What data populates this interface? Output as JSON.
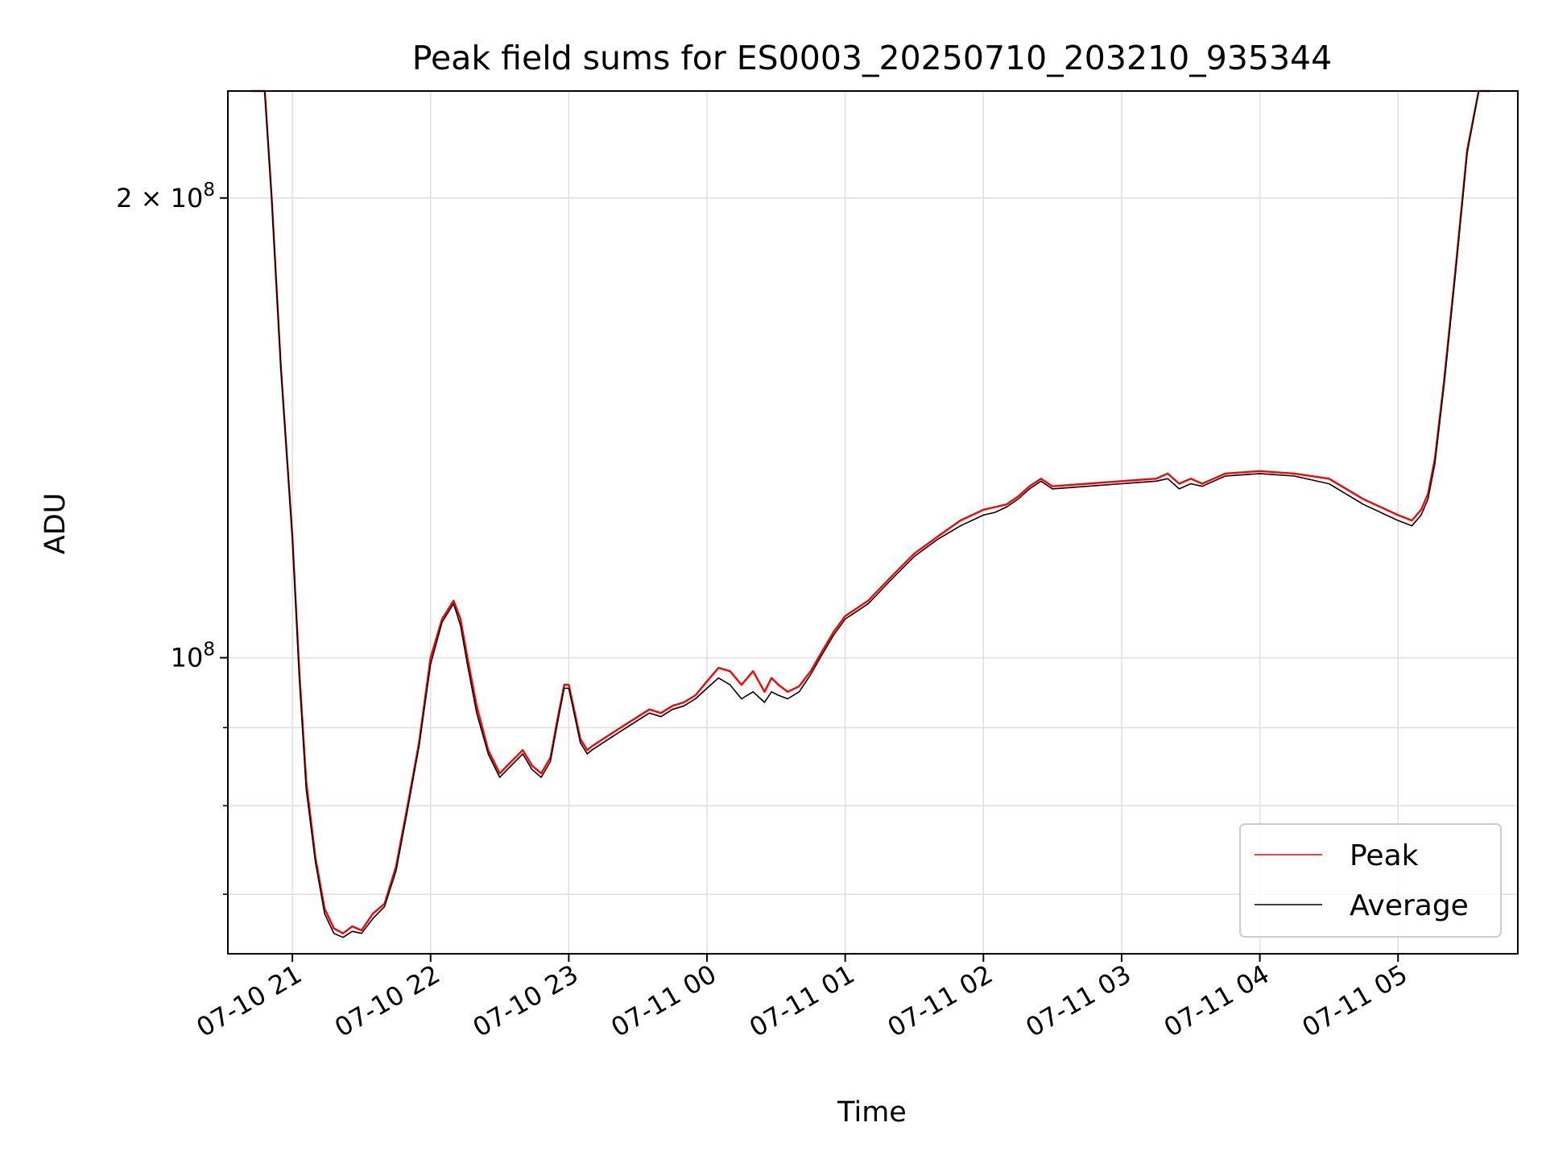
{
  "chart_data": {
    "type": "line",
    "title": "Peak field sums for ES0003_20250710_203210_935344",
    "xlabel": "Time",
    "ylabel": "ADU",
    "y_scale": "log",
    "ylim": [
      64000000,
      235000000
    ],
    "xlim": [
      "2025-07-10T20:32",
      "2025-07-11T05:52"
    ],
    "grid": true,
    "legend_position": "lower-right",
    "x_ticks": [
      {
        "t": "2025-07-10T21:00",
        "label": "07-10 21"
      },
      {
        "t": "2025-07-10T22:00",
        "label": "07-10 22"
      },
      {
        "t": "2025-07-10T23:00",
        "label": "07-10 23"
      },
      {
        "t": "2025-07-11T00:00",
        "label": "07-11 00"
      },
      {
        "t": "2025-07-11T01:00",
        "label": "07-11 01"
      },
      {
        "t": "2025-07-11T02:00",
        "label": "07-11 02"
      },
      {
        "t": "2025-07-11T03:00",
        "label": "07-11 03"
      },
      {
        "t": "2025-07-11T04:00",
        "label": "07-11 04"
      },
      {
        "t": "2025-07-11T05:00",
        "label": "07-11 05"
      }
    ],
    "y_ticks_major": [
      {
        "v": 100000000,
        "base": "10",
        "exp": "8",
        "coef": ""
      },
      {
        "v": 200000000,
        "base": "10",
        "exp": "8",
        "coef": "2 × "
      }
    ],
    "y_ticks_minor": [
      70000000,
      80000000,
      90000000
    ],
    "series": [
      {
        "name": "Peak",
        "color": "#ff0000",
        "x": [
          "2025-07-10T20:42",
          "2025-07-10T20:48",
          "2025-07-10T20:51",
          "2025-07-10T20:55",
          "2025-07-10T21:00",
          "2025-07-10T21:03",
          "2025-07-10T21:06",
          "2025-07-10T21:10",
          "2025-07-10T21:14",
          "2025-07-10T21:18",
          "2025-07-10T21:22",
          "2025-07-10T21:26",
          "2025-07-10T21:30",
          "2025-07-10T21:35",
          "2025-07-10T21:40",
          "2025-07-10T21:45",
          "2025-07-10T21:50",
          "2025-07-10T21:55",
          "2025-07-10T22:00",
          "2025-07-10T22:05",
          "2025-07-10T22:10",
          "2025-07-10T22:13",
          "2025-07-10T22:16",
          "2025-07-10T22:20",
          "2025-07-10T22:25",
          "2025-07-10T22:30",
          "2025-07-10T22:35",
          "2025-07-10T22:40",
          "2025-07-10T22:44",
          "2025-07-10T22:48",
          "2025-07-10T22:52",
          "2025-07-10T22:55",
          "2025-07-10T22:58",
          "2025-07-10T23:00",
          "2025-07-10T23:05",
          "2025-07-10T23:08",
          "2025-07-10T23:10",
          "2025-07-10T23:15",
          "2025-07-10T23:20",
          "2025-07-10T23:25",
          "2025-07-10T23:30",
          "2025-07-10T23:35",
          "2025-07-10T23:40",
          "2025-07-10T23:45",
          "2025-07-10T23:50",
          "2025-07-10T23:55",
          "2025-07-11T00:00",
          "2025-07-11T00:05",
          "2025-07-11T00:10",
          "2025-07-11T00:15",
          "2025-07-11T00:20",
          "2025-07-11T00:25",
          "2025-07-11T00:28",
          "2025-07-11T00:31",
          "2025-07-11T00:35",
          "2025-07-11T00:40",
          "2025-07-11T00:45",
          "2025-07-11T00:50",
          "2025-07-11T00:55",
          "2025-07-11T01:00",
          "2025-07-11T01:10",
          "2025-07-11T01:20",
          "2025-07-11T01:30",
          "2025-07-11T01:40",
          "2025-07-11T01:50",
          "2025-07-11T02:00",
          "2025-07-11T02:05",
          "2025-07-11T02:10",
          "2025-07-11T02:15",
          "2025-07-11T02:20",
          "2025-07-11T02:25",
          "2025-07-11T02:30",
          "2025-07-11T02:45",
          "2025-07-11T03:00",
          "2025-07-11T03:15",
          "2025-07-11T03:20",
          "2025-07-11T03:25",
          "2025-07-11T03:30",
          "2025-07-11T03:35",
          "2025-07-11T03:40",
          "2025-07-11T03:45",
          "2025-07-11T04:00",
          "2025-07-11T04:15",
          "2025-07-11T04:30",
          "2025-07-11T04:45",
          "2025-07-11T05:00",
          "2025-07-11T05:06",
          "2025-07-11T05:10",
          "2025-07-11T05:13",
          "2025-07-11T05:16",
          "2025-07-11T05:20",
          "2025-07-11T05:25",
          "2025-07-11T05:30",
          "2025-07-11T05:35",
          "2025-07-11T05:40"
        ],
        "values": [
          235000000,
          235000000,
          200000000,
          155000000,
          120000000,
          98000000,
          83000000,
          74000000,
          68500000,
          66500000,
          66000000,
          66700000,
          66300000,
          68000000,
          69000000,
          73000000,
          80000000,
          88000000,
          100000000,
          106000000,
          109000000,
          106000000,
          100000000,
          93000000,
          87000000,
          84000000,
          85500000,
          87000000,
          85000000,
          84000000,
          86000000,
          91000000,
          96000000,
          96000000,
          88500000,
          87000000,
          87500000,
          88500000,
          89500000,
          90500000,
          91500000,
          92500000,
          92000000,
          93000000,
          93500000,
          94500000,
          96500000,
          98500000,
          98000000,
          96000000,
          98000000,
          95000000,
          97000000,
          96000000,
          95000000,
          95800000,
          98000000,
          101000000,
          104000000,
          106500000,
          109000000,
          113000000,
          117000000,
          120000000,
          123000000,
          125000000,
          125500000,
          126000000,
          127500000,
          129500000,
          131000000,
          129500000,
          130000000,
          130500000,
          131000000,
          132000000,
          130000000,
          131000000,
          130000000,
          131000000,
          132000000,
          132500000,
          132000000,
          131000000,
          127000000,
          124000000,
          123000000,
          125000000,
          128000000,
          135000000,
          152000000,
          180000000,
          215000000,
          235000000,
          235000000
        ]
      },
      {
        "name": "Average",
        "color": "#000000",
        "x": [
          "2025-07-10T20:42",
          "2025-07-10T20:48",
          "2025-07-10T20:51",
          "2025-07-10T20:55",
          "2025-07-10T21:00",
          "2025-07-10T21:03",
          "2025-07-10T21:06",
          "2025-07-10T21:10",
          "2025-07-10T21:14",
          "2025-07-10T21:18",
          "2025-07-10T21:22",
          "2025-07-10T21:26",
          "2025-07-10T21:30",
          "2025-07-10T21:35",
          "2025-07-10T21:40",
          "2025-07-10T21:45",
          "2025-07-10T21:50",
          "2025-07-10T21:55",
          "2025-07-10T22:00",
          "2025-07-10T22:05",
          "2025-07-10T22:10",
          "2025-07-10T22:13",
          "2025-07-10T22:16",
          "2025-07-10T22:20",
          "2025-07-10T22:25",
          "2025-07-10T22:30",
          "2025-07-10T22:35",
          "2025-07-10T22:40",
          "2025-07-10T22:44",
          "2025-07-10T22:48",
          "2025-07-10T22:52",
          "2025-07-10T22:55",
          "2025-07-10T22:58",
          "2025-07-10T23:00",
          "2025-07-10T23:05",
          "2025-07-10T23:08",
          "2025-07-10T23:10",
          "2025-07-10T23:15",
          "2025-07-10T23:20",
          "2025-07-10T23:25",
          "2025-07-10T23:30",
          "2025-07-10T23:35",
          "2025-07-10T23:40",
          "2025-07-10T23:45",
          "2025-07-10T23:50",
          "2025-07-10T23:55",
          "2025-07-11T00:00",
          "2025-07-11T00:05",
          "2025-07-11T00:10",
          "2025-07-11T00:15",
          "2025-07-11T00:20",
          "2025-07-11T00:25",
          "2025-07-11T00:28",
          "2025-07-11T00:31",
          "2025-07-11T00:35",
          "2025-07-11T00:40",
          "2025-07-11T00:45",
          "2025-07-11T00:50",
          "2025-07-11T00:55",
          "2025-07-11T01:00",
          "2025-07-11T01:10",
          "2025-07-11T01:20",
          "2025-07-11T01:30",
          "2025-07-11T01:40",
          "2025-07-11T01:50",
          "2025-07-11T02:00",
          "2025-07-11T02:05",
          "2025-07-11T02:10",
          "2025-07-11T02:15",
          "2025-07-11T02:20",
          "2025-07-11T02:25",
          "2025-07-11T02:30",
          "2025-07-11T02:45",
          "2025-07-11T03:00",
          "2025-07-11T03:15",
          "2025-07-11T03:20",
          "2025-07-11T03:25",
          "2025-07-11T03:30",
          "2025-07-11T03:35",
          "2025-07-11T03:40",
          "2025-07-11T03:45",
          "2025-07-11T04:00",
          "2025-07-11T04:15",
          "2025-07-11T04:30",
          "2025-07-11T04:45",
          "2025-07-11T05:00",
          "2025-07-11T05:06",
          "2025-07-11T05:10",
          "2025-07-11T05:13",
          "2025-07-11T05:16",
          "2025-07-11T05:20",
          "2025-07-11T05:25",
          "2025-07-11T05:30",
          "2025-07-11T05:35",
          "2025-07-11T05:40"
        ],
        "values": [
          235000000,
          235000000,
          200000000,
          155000000,
          120000000,
          97000000,
          82000000,
          73500000,
          68000000,
          66000000,
          65600000,
          66200000,
          66000000,
          67500000,
          68700000,
          72500000,
          79500000,
          87500000,
          99000000,
          105500000,
          108500000,
          105000000,
          99000000,
          92000000,
          86500000,
          83500000,
          85000000,
          86500000,
          84500000,
          83500000,
          85500000,
          90500000,
          95500000,
          95500000,
          88000000,
          86500000,
          87000000,
          88000000,
          89000000,
          90000000,
          91000000,
          92000000,
          91500000,
          92500000,
          93000000,
          94000000,
          95500000,
          97000000,
          96000000,
          94000000,
          95000000,
          93500000,
          95000000,
          94500000,
          94000000,
          95000000,
          97500000,
          100500000,
          103500000,
          106000000,
          108500000,
          112500000,
          116500000,
          119500000,
          122000000,
          124000000,
          124500000,
          125500000,
          127000000,
          129000000,
          130500000,
          129000000,
          129500000,
          130000000,
          130500000,
          131000000,
          129000000,
          130000000,
          129500000,
          130500000,
          131500000,
          132000000,
          131500000,
          130000000,
          126000000,
          123000000,
          122000000,
          124000000,
          127000000,
          134000000,
          151000000,
          179000000,
          214000000,
          235000000,
          235000000
        ]
      }
    ]
  }
}
